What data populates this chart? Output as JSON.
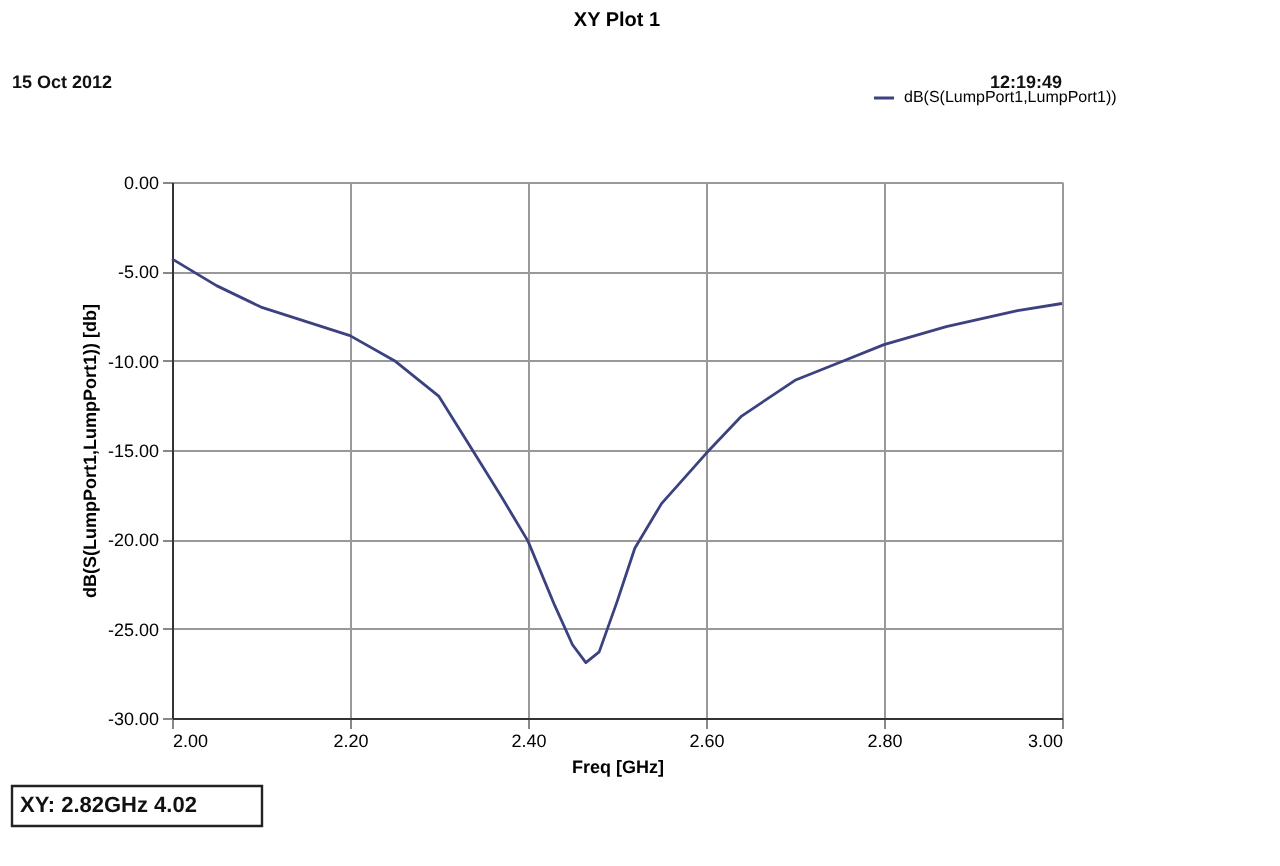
{
  "chart_data": {
    "type": "line",
    "title": "XY Plot 1",
    "xlabel": "Freq [GHz]",
    "ylabel": "dB(S(LumpPort1,LumpPort1)) [db]",
    "annotations": [
      "15 Oct 2012",
      "12:19:49",
      "XY: 2.82GHz 4.02"
    ],
    "x": [
      2.0,
      2.05,
      2.1,
      2.15,
      2.2,
      2.25,
      2.3,
      2.34,
      2.37,
      2.4,
      2.43,
      2.45,
      2.465,
      2.48,
      2.5,
      2.52,
      2.55,
      2.6,
      2.64,
      2.7,
      2.75,
      2.8,
      2.87,
      2.95,
      3.0
    ],
    "series": [
      {
        "name": "dB(S(LumpPort1,LumpPort1))",
        "color": "#3c4180",
        "values": [
          -4.3,
          -5.8,
          -7.0,
          -7.8,
          -8.6,
          -10.0,
          -12.0,
          -15.2,
          -17.6,
          -20.1,
          -23.7,
          -25.9,
          -26.9,
          -26.3,
          -23.5,
          -20.5,
          -18.0,
          -15.2,
          -13.1,
          -11.1,
          -10.1,
          -9.1,
          -8.1,
          -7.2,
          -6.8
        ]
      }
    ],
    "xlim": [
      2.0,
      3.0
    ],
    "ylim": [
      -30,
      0
    ],
    "xticks": [
      {
        "value": 2.0,
        "label": "2.00"
      },
      {
        "value": 2.2,
        "label": "2.20"
      },
      {
        "value": 2.4,
        "label": "2.40"
      },
      {
        "value": 2.6,
        "label": "2.60"
      },
      {
        "value": 2.8,
        "label": "2.80"
      },
      {
        "value": 3.0,
        "label": "3.00"
      }
    ],
    "yticks": [
      {
        "value": 0,
        "label": "0.00"
      },
      {
        "value": -5,
        "label": "-5.00"
      },
      {
        "value": -10,
        "label": "-10.00"
      },
      {
        "value": -15,
        "label": "-15.00"
      },
      {
        "value": -20,
        "label": "-20.00"
      },
      {
        "value": -25,
        "label": "-25.00"
      },
      {
        "value": -30,
        "label": "-30.00"
      }
    ],
    "grid": true,
    "legend": "top right",
    "marker": "none",
    "line_style": "solid"
  }
}
